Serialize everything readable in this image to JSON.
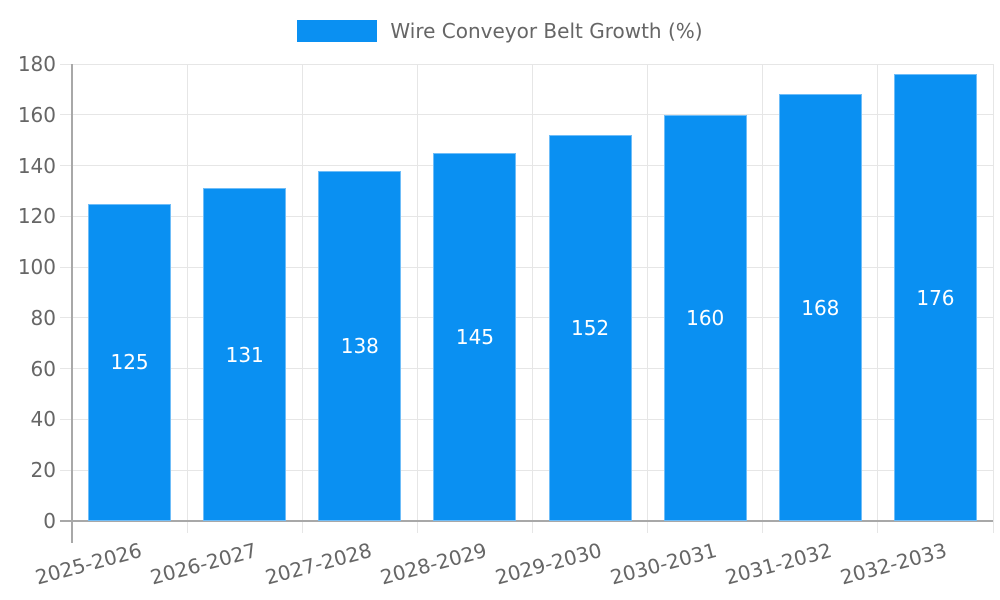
{
  "chart_data": {
    "type": "bar",
    "legend": "Wire Conveyor Belt Growth (%)",
    "legend_position": "top",
    "categories": [
      "2025-2026",
      "2026-2027",
      "2027-2028",
      "2028-2029",
      "2029-2030",
      "2030-2031",
      "2031-2032",
      "2032-2033"
    ],
    "values": [
      125,
      131,
      138,
      145,
      152,
      160,
      168,
      176
    ],
    "value_labels": [
      "125",
      "131",
      "138",
      "145",
      "152",
      "160",
      "168",
      "176"
    ],
    "xlabel": "",
    "ylabel": "",
    "ylim": [
      0,
      180
    ],
    "yticks": [
      0,
      20,
      40,
      60,
      80,
      100,
      120,
      140,
      160,
      180
    ],
    "grid": true,
    "colors": {
      "bar": "#0a90f2",
      "bar_border": "#6fbdf8",
      "grid": "#e6e6e6",
      "axis": "#a8a8a8",
      "tick_text": "#666666",
      "value_text": "#ffffff",
      "background": "#ffffff"
    }
  }
}
